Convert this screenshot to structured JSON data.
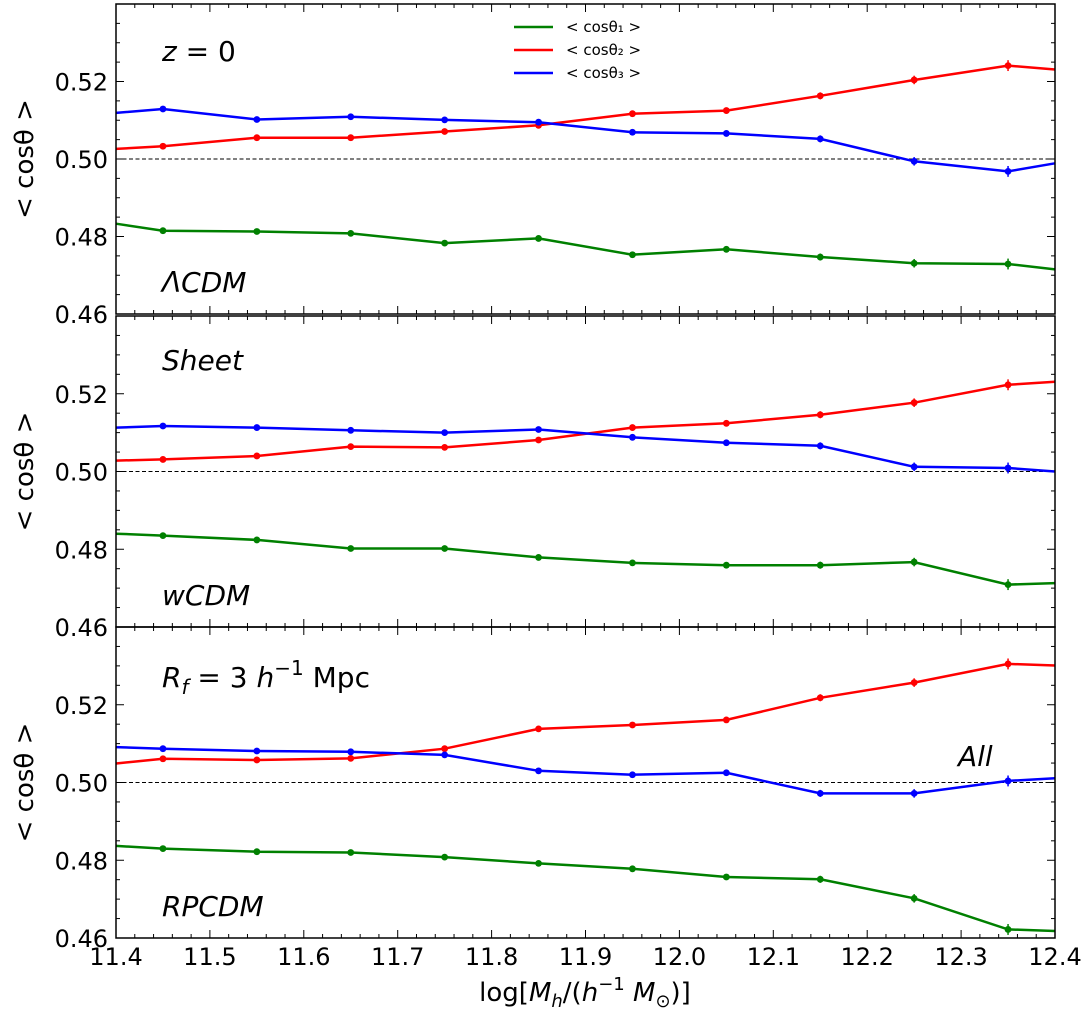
{
  "chart_data": {
    "type": "line",
    "xlim": [
      11.4,
      12.4
    ],
    "ylim": [
      0.46,
      0.54
    ],
    "x_ticks": [
      "11.4",
      "11.5",
      "11.6",
      "11.7",
      "11.8",
      "11.9",
      "12.0",
      "12.1",
      "12.2",
      "12.3",
      "12.4"
    ],
    "y_ticks": [
      "0.46",
      "0.48",
      "0.50",
      "0.52"
    ],
    "xlabel": "log[M_h/(h^-1 M_⊙)]",
    "ylabel": "< cosθ >",
    "reference_line": 0.5,
    "grid": false,
    "legend": {
      "placement": "top-center",
      "entries": [
        {
          "label": "< cosθ₁ >",
          "color": "#008000"
        },
        {
          "label": "< cosθ₂ >",
          "color": "#ff0000"
        },
        {
          "label": "< cosθ₃ >",
          "color": "#0000ff"
        }
      ]
    },
    "panels": [
      {
        "annotation_top": "z = 0",
        "annotation_bottom": "ΛCDM",
        "series": [
          {
            "color": "#008000",
            "x": [
              11.4,
              11.45,
              11.55,
              11.65,
              11.75,
              11.85,
              11.95,
              12.05,
              12.15,
              12.25,
              12.35,
              12.4
            ],
            "y": [
              0.4833,
              0.4815,
              0.4813,
              0.4808,
              0.4783,
              0.4795,
              0.4753,
              0.4767,
              0.4747,
              0.4731,
              0.4729,
              0.4715
            ],
            "err": [
              0,
              0.0004,
              0.0004,
              0.0004,
              0.0005,
              0.0005,
              0.0006,
              0.0007,
              0.0009,
              0.0011,
              0.0014,
              0
            ]
          },
          {
            "color": "#ff0000",
            "x": [
              11.4,
              11.45,
              11.55,
              11.65,
              11.75,
              11.85,
              11.95,
              12.05,
              12.15,
              12.25,
              12.35,
              12.4
            ],
            "y": [
              0.5026,
              0.5033,
              0.5055,
              0.5055,
              0.5071,
              0.5087,
              0.5117,
              0.5125,
              0.5163,
              0.5204,
              0.5241,
              0.5231
            ],
            "err": [
              0,
              0.0004,
              0.0004,
              0.0004,
              0.0005,
              0.0005,
              0.0006,
              0.0007,
              0.0009,
              0.0011,
              0.0014,
              0
            ]
          },
          {
            "color": "#0000ff",
            "x": [
              11.4,
              11.45,
              11.55,
              11.65,
              11.75,
              11.85,
              11.95,
              12.05,
              12.15,
              12.25,
              12.35,
              12.4
            ],
            "y": [
              0.5119,
              0.5129,
              0.5102,
              0.5109,
              0.5101,
              0.5095,
              0.5069,
              0.5066,
              0.5052,
              0.4994,
              0.4968,
              0.4989
            ],
            "err": [
              0,
              0.0004,
              0.0004,
              0.0004,
              0.0005,
              0.0005,
              0.0006,
              0.0007,
              0.0009,
              0.0011,
              0.0014,
              0
            ]
          }
        ]
      },
      {
        "annotation_top": "Sheet",
        "annotation_bottom": "wCDM",
        "series": [
          {
            "color": "#008000",
            "x": [
              11.4,
              11.45,
              11.55,
              11.65,
              11.75,
              11.85,
              11.95,
              12.05,
              12.15,
              12.25,
              12.35,
              12.4
            ],
            "y": [
              0.484,
              0.4835,
              0.4824,
              0.4802,
              0.4802,
              0.4779,
              0.4765,
              0.4759,
              0.4759,
              0.4767,
              0.4709,
              0.4713
            ],
            "err": [
              0,
              0.0004,
              0.0004,
              0.0004,
              0.0005,
              0.0005,
              0.0006,
              0.0007,
              0.0009,
              0.0011,
              0.0014,
              0
            ]
          },
          {
            "color": "#ff0000",
            "x": [
              11.4,
              11.45,
              11.55,
              11.65,
              11.75,
              11.85,
              11.95,
              12.05,
              12.15,
              12.25,
              12.35,
              12.4
            ],
            "y": [
              0.5028,
              0.5031,
              0.504,
              0.5064,
              0.5062,
              0.5081,
              0.5113,
              0.5124,
              0.5146,
              0.5177,
              0.5223,
              0.5231
            ],
            "err": [
              0,
              0.0004,
              0.0004,
              0.0004,
              0.0005,
              0.0005,
              0.0006,
              0.0007,
              0.0009,
              0.0011,
              0.0014,
              0
            ]
          },
          {
            "color": "#0000ff",
            "x": [
              11.4,
              11.45,
              11.55,
              11.65,
              11.75,
              11.85,
              11.95,
              12.05,
              12.15,
              12.25,
              12.35,
              12.4
            ],
            "y": [
              0.5113,
              0.5117,
              0.5113,
              0.5106,
              0.51,
              0.5108,
              0.5088,
              0.5074,
              0.5066,
              0.5012,
              0.5009,
              0.5
            ],
            "err": [
              0,
              0.0004,
              0.0004,
              0.0004,
              0.0005,
              0.0005,
              0.0006,
              0.0007,
              0.0009,
              0.0011,
              0.0014,
              0
            ]
          }
        ]
      },
      {
        "annotation_top": "R_f = 3 h^-1 Mpc",
        "annotation_bottom": "RPCDM",
        "annotation_extra": "All",
        "series": [
          {
            "color": "#008000",
            "x": [
              11.4,
              11.45,
              11.55,
              11.65,
              11.75,
              11.85,
              11.95,
              12.05,
              12.15,
              12.25,
              12.35,
              12.4
            ],
            "y": [
              0.4837,
              0.483,
              0.4822,
              0.482,
              0.4808,
              0.4792,
              0.4778,
              0.4757,
              0.4751,
              0.4702,
              0.4622,
              0.4618
            ],
            "err": [
              0,
              0.0004,
              0.0004,
              0.0004,
              0.0005,
              0.0005,
              0.0006,
              0.0007,
              0.0009,
              0.0011,
              0.0014,
              0
            ]
          },
          {
            "color": "#ff0000",
            "x": [
              11.4,
              11.45,
              11.55,
              11.65,
              11.75,
              11.85,
              11.95,
              12.05,
              12.15,
              12.25,
              12.35,
              12.4
            ],
            "y": [
              0.5049,
              0.5061,
              0.5058,
              0.5062,
              0.5087,
              0.5138,
              0.5148,
              0.5161,
              0.5218,
              0.5257,
              0.5305,
              0.5301
            ],
            "err": [
              0,
              0.0004,
              0.0004,
              0.0004,
              0.0005,
              0.0005,
              0.0006,
              0.0007,
              0.0009,
              0.0011,
              0.0014,
              0
            ]
          },
          {
            "color": "#0000ff",
            "x": [
              11.4,
              11.45,
              11.55,
              11.65,
              11.75,
              11.85,
              11.95,
              12.05,
              12.15,
              12.25,
              12.35,
              12.4
            ],
            "y": [
              0.5091,
              0.5087,
              0.5081,
              0.5079,
              0.5071,
              0.503,
              0.502,
              0.5025,
              0.4972,
              0.4972,
              0.5004,
              0.5011
            ],
            "err": [
              0,
              0.0004,
              0.0004,
              0.0004,
              0.0005,
              0.0005,
              0.0006,
              0.0007,
              0.0009,
              0.0011,
              0.0014,
              0
            ]
          }
        ]
      }
    ]
  }
}
